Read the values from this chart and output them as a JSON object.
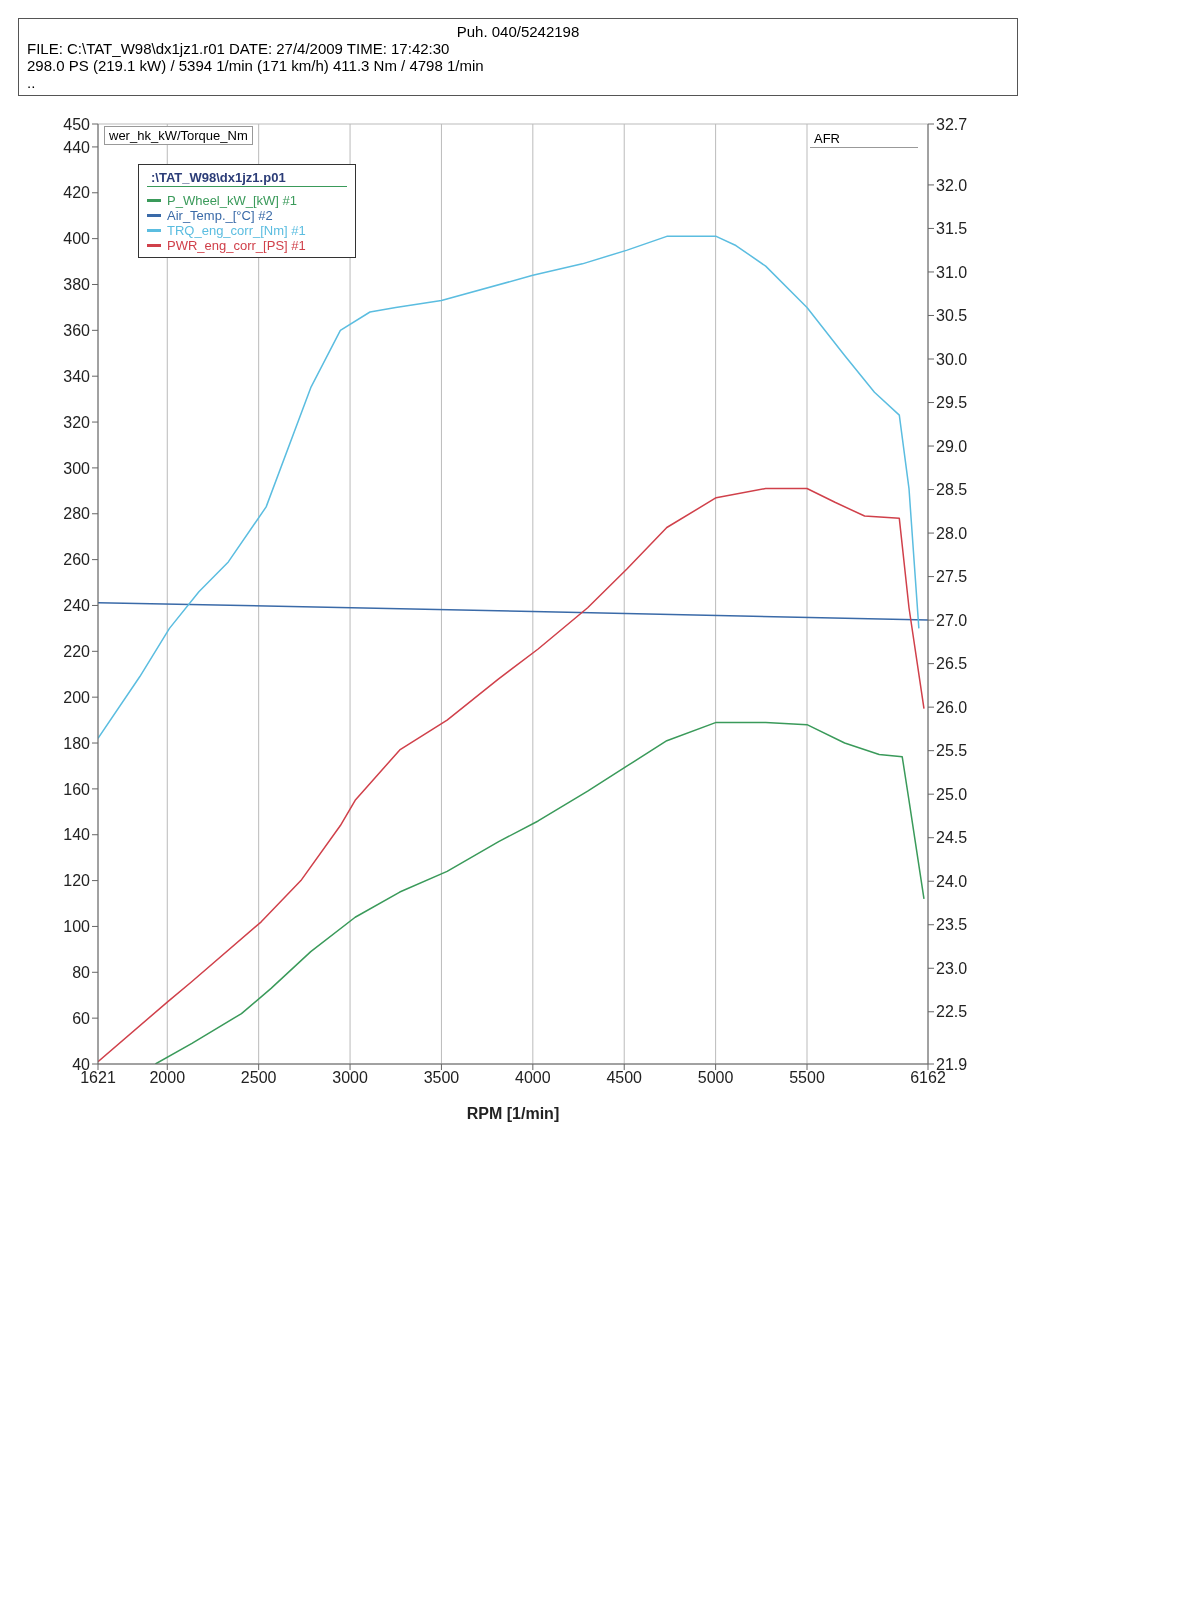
{
  "chart_data": {
    "type": "line",
    "annotations": [
      "Puh. 040/5242198",
      "FILE: C:\\TAT_W98\\dx1jz1.r01  DATE: 27/4/2009  TIME: 17:42:30",
      "298.0 PS  (219.1 kW) / 5394 1/min (171 km/h)   411.3 Nm / 4798 1/min",
      ".."
    ],
    "xlabel": "RPM  [1/min]",
    "ylabel": "wer_hk_kW/Torque_Nm",
    "y2label": "AFR",
    "legend_title": ":\\TAT_W98\\dx1jz1.p01",
    "xlim": [
      1621,
      6162
    ],
    "xticks": [
      1621,
      2000,
      2500,
      3000,
      3500,
      4000,
      4500,
      5000,
      5500,
      6162
    ],
    "ylim": [
      40,
      450
    ],
    "yticks": [
      40,
      60,
      80,
      100,
      120,
      140,
      160,
      180,
      200,
      220,
      240,
      260,
      280,
      300,
      320,
      340,
      360,
      380,
      400,
      420,
      440,
      450
    ],
    "y2lim": [
      21.9,
      32.7
    ],
    "y2ticks": [
      21.9,
      22.5,
      {
        "value": 23,
        "label": "23.0"
      },
      23.5,
      {
        "value": 24,
        "label": "24.0"
      },
      24.5,
      {
        "value": 25,
        "label": "25.0"
      },
      25.5,
      {
        "value": 26,
        "label": "26.0"
      },
      26.5,
      {
        "value": 27,
        "label": "27.0"
      },
      27.5,
      {
        "value": 28,
        "label": "28.0"
      },
      28.5,
      {
        "value": 29,
        "label": "29.0"
      },
      29.5,
      {
        "value": 30,
        "label": "30.0"
      },
      30.5,
      {
        "value": 31,
        "label": "31.0"
      },
      31.5,
      {
        "value": 32,
        "label": "32.0"
      },
      32.7
    ],
    "grid": true,
    "legend": "top left",
    "marker": "none",
    "line_style": "solid",
    "series": [
      {
        "name": "P_Wheel_kW_[kW] #1",
        "color": "#3a9a5a",
        "x": [
          1935,
          2135,
          2406,
          2568,
          2785,
          3028,
          3272,
          3531,
          3813,
          4029,
          4300,
          4516,
          4733,
          5003,
          5274,
          5500,
          5706,
          5895,
          6021,
          6058,
          6140
        ],
        "values": [
          40,
          49,
          62,
          73,
          89,
          104,
          115,
          124,
          137,
          146,
          159,
          170,
          181,
          189,
          189,
          188,
          180,
          175,
          174,
          155,
          112
        ]
      },
      {
        "name": "Air_Temp._[°C] #2",
        "color": "#3a6aa8",
        "axis": "y2",
        "x": [
          1621,
          4000,
          6162
        ],
        "values": [
          27.2,
          27.1,
          27.0
        ]
      },
      {
        "name": "TRQ_eng_corr_[Nm] #1",
        "color": "#5bbde0",
        "x": [
          1621,
          1850,
          2012,
          2173,
          2334,
          2541,
          2785,
          2947,
          3109,
          3250,
          3500,
          4000,
          4271,
          4516,
          4733,
          5003,
          5111,
          5274,
          5500,
          5706,
          5869,
          6005,
          6058,
          6112
        ],
        "values": [
          182,
          209,
          230,
          246,
          259,
          283,
          335,
          360,
          368,
          370,
          373,
          384,
          389,
          395,
          401,
          401,
          397,
          388,
          370,
          349,
          333,
          323,
          291,
          230
        ]
      },
      {
        "name": "PWR_eng_corr_[PS] #1",
        "color": "#d0404a",
        "x": [
          1621,
          2000,
          2135,
          2514,
          2731,
          2947,
          3028,
          3272,
          3531,
          3813,
          4029,
          4300,
          4516,
          4733,
          5003,
          5274,
          5500,
          5653,
          5815,
          6005,
          6058,
          6140
        ],
        "values": [
          41,
          67,
          76,
          102,
          120,
          144,
          155,
          177,
          190,
          208,
          221,
          239,
          256,
          274,
          287,
          291,
          291,
          285,
          279,
          278,
          239,
          195
        ]
      }
    ]
  }
}
